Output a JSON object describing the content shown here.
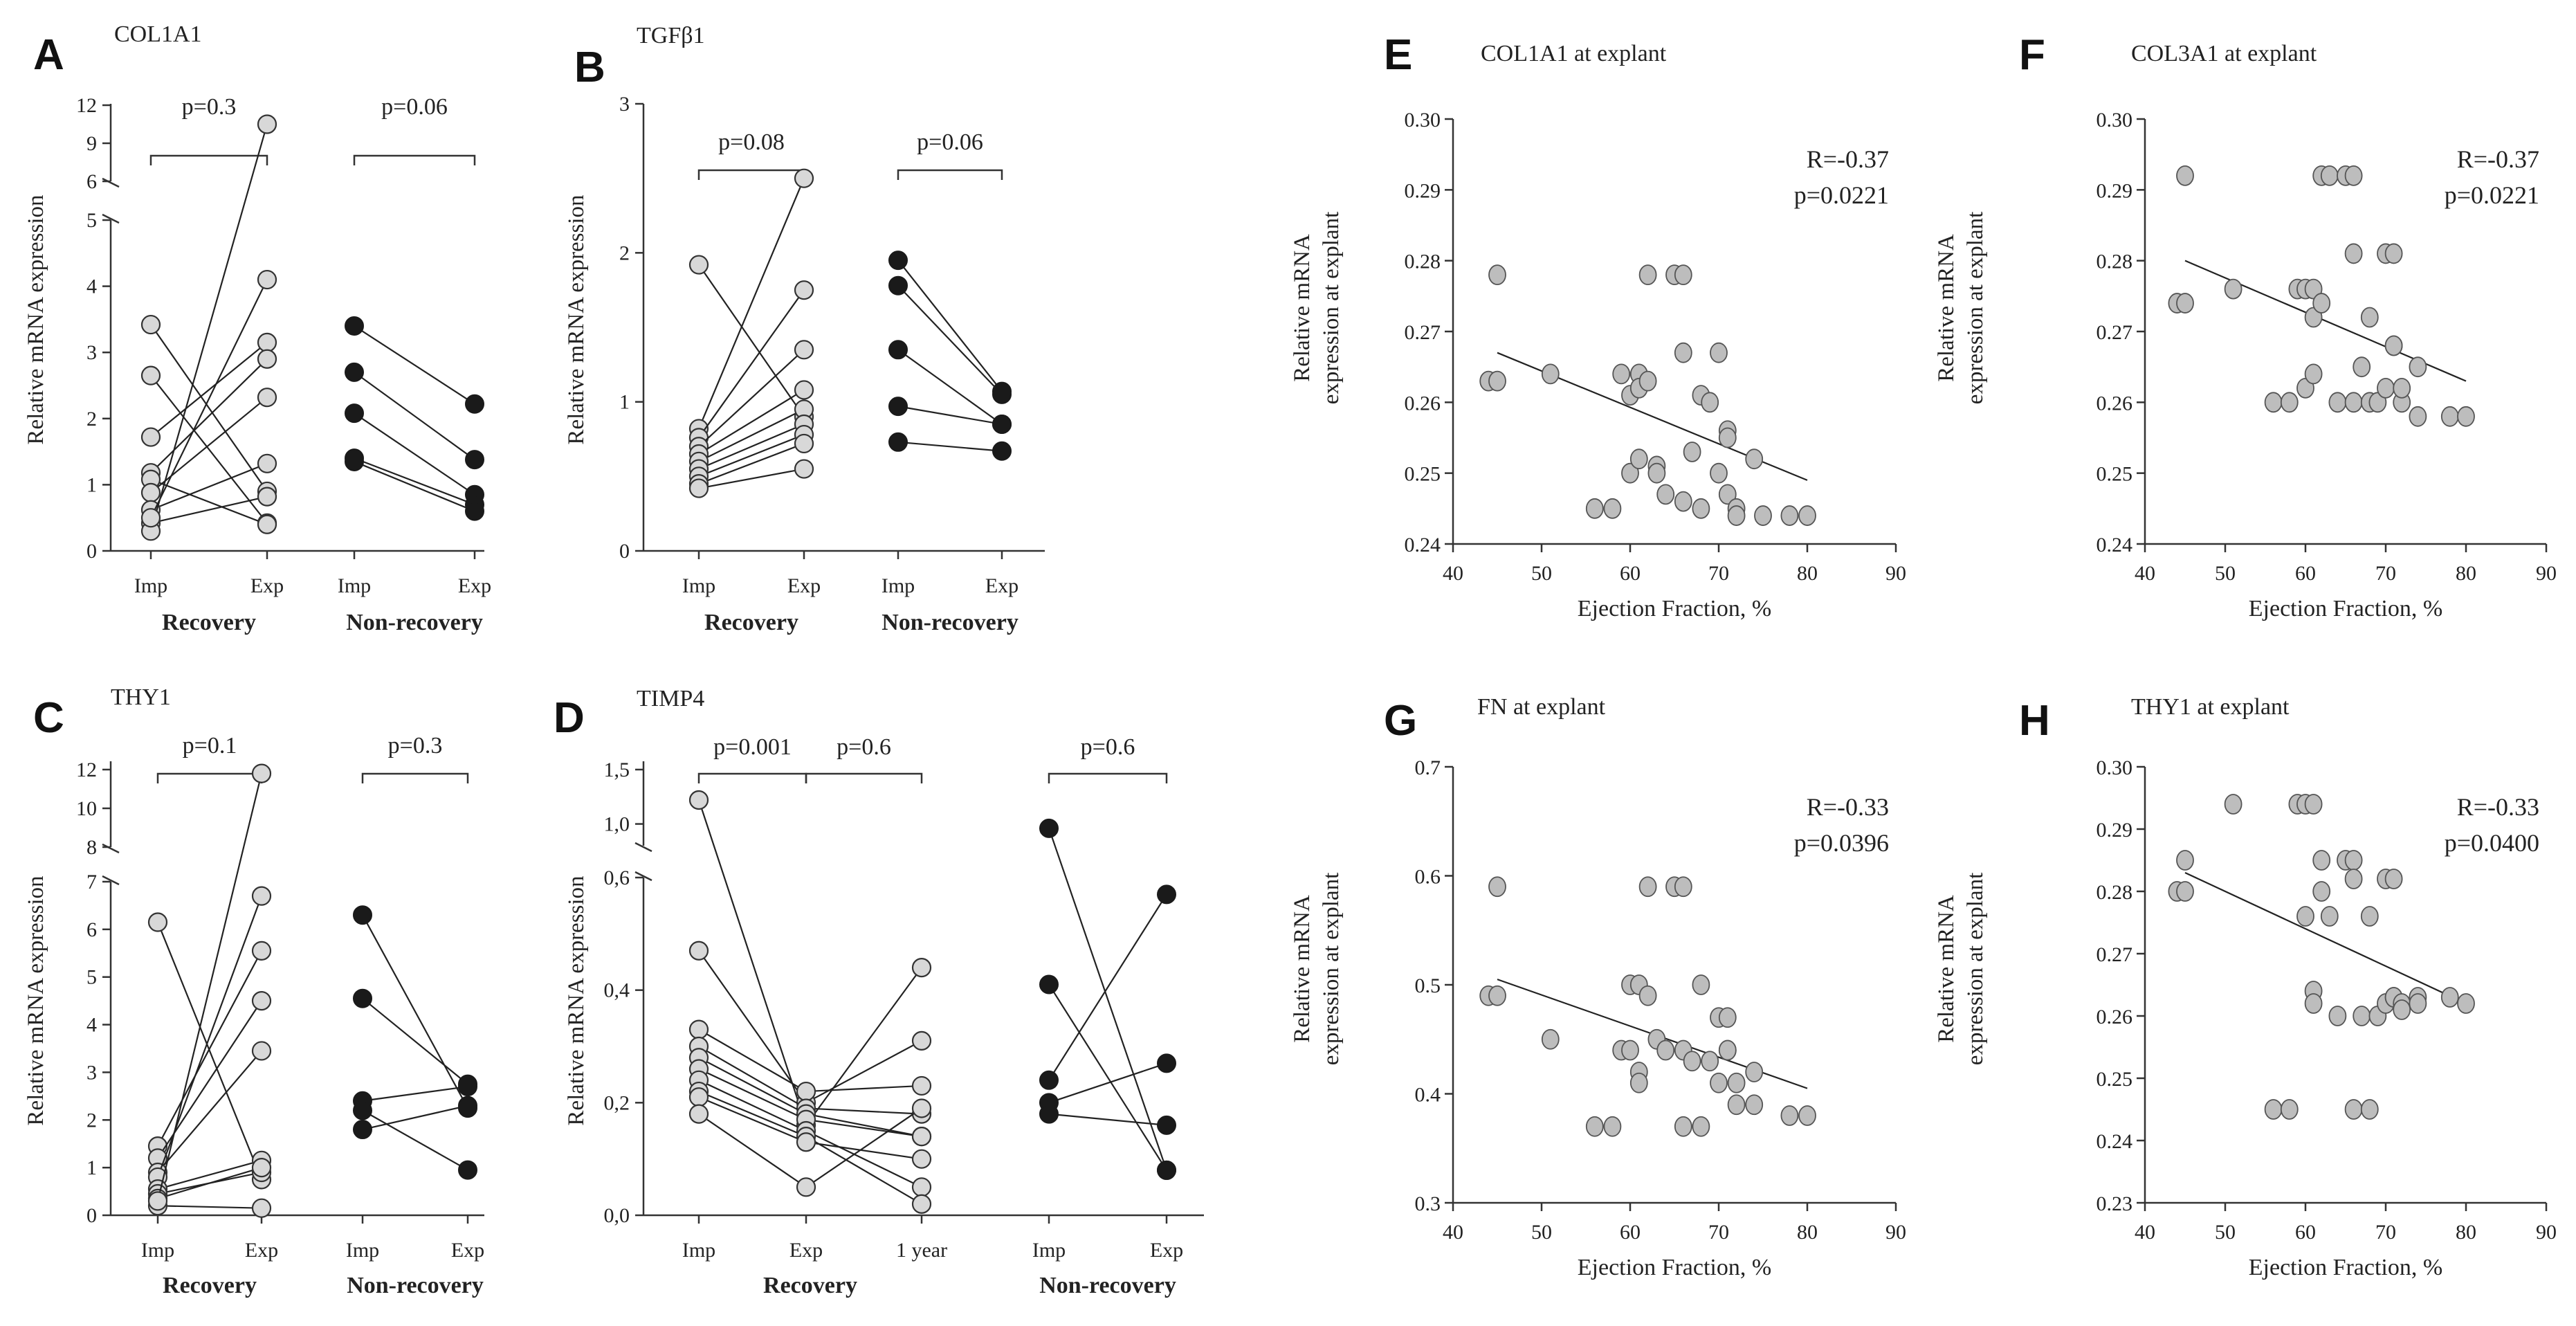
{
  "chart_data": [
    {
      "id": "A",
      "type": "line",
      "subtype": "paired",
      "letter": "A",
      "title": "COL1A1",
      "ylabel": "Relative mRNA expression",
      "yaxis": {
        "ticks": [
          0,
          1,
          2,
          3,
          4,
          5,
          6,
          9,
          12
        ],
        "break": [
          5,
          6
        ]
      },
      "groups": [
        {
          "label": "Recovery",
          "xlabels": [
            "Imp",
            "Exp"
          ],
          "filled": false,
          "p_label": "p=0.3",
          "pairs": [
            [
              3.42,
              0.9
            ],
            [
              2.65,
              0.42
            ],
            [
              1.72,
              3.15
            ],
            [
              1.18,
              2.9
            ],
            [
              1.08,
              0.4
            ],
            [
              0.88,
              2.32
            ],
            [
              0.62,
              1.32
            ],
            [
              0.42,
              0.82
            ],
            [
              0.3,
              10.5
            ],
            [
              0.5,
              4.1
            ]
          ]
        },
        {
          "label": "Non-recovery",
          "xlabels": [
            "Imp",
            "Exp"
          ],
          "filled": true,
          "p_label": "p=0.06",
          "pairs": [
            [
              3.4,
              2.22
            ],
            [
              2.7,
              1.38
            ],
            [
              2.08,
              0.85
            ],
            [
              1.4,
              0.7
            ],
            [
              1.35,
              0.6
            ]
          ]
        }
      ]
    },
    {
      "id": "B",
      "type": "line",
      "subtype": "paired",
      "letter": "B",
      "title": "TGFβ1",
      "ylabel": "Relative mRNA expression",
      "yaxis": {
        "ticks": [
          0,
          1,
          2,
          3
        ],
        "break": null
      },
      "groups": [
        {
          "label": "Recovery",
          "xlabels": [
            "Imp",
            "Exp"
          ],
          "filled": false,
          "p_label": "p=0.08",
          "pairs": [
            [
              1.92,
              0.9
            ],
            [
              0.82,
              2.5
            ],
            [
              0.76,
              1.75
            ],
            [
              0.7,
              1.35
            ],
            [
              0.65,
              1.08
            ],
            [
              0.6,
              0.95
            ],
            [
              0.55,
              0.85
            ],
            [
              0.5,
              0.78
            ],
            [
              0.45,
              0.72
            ],
            [
              0.42,
              0.55
            ]
          ]
        },
        {
          "label": "Non-recovery",
          "xlabels": [
            "Imp",
            "Exp"
          ],
          "filled": true,
          "p_label": "p=0.06",
          "pairs": [
            [
              1.95,
              1.07
            ],
            [
              1.78,
              1.05
            ],
            [
              1.35,
              0.85
            ],
            [
              0.97,
              0.85
            ],
            [
              0.73,
              0.67
            ]
          ]
        }
      ]
    },
    {
      "id": "C",
      "type": "line",
      "subtype": "paired",
      "letter": "C",
      "title": "THY1",
      "ylabel": "Relative mRNA expression",
      "yaxis": {
        "ticks": [
          0,
          1,
          2,
          3,
          4,
          5,
          6,
          7,
          8,
          10,
          12
        ],
        "break": [
          7,
          8
        ]
      },
      "groups": [
        {
          "label": "Recovery",
          "xlabels": [
            "Imp",
            "Exp"
          ],
          "filled": false,
          "p_label": "p=0.1",
          "pairs": [
            [
              6.15,
              0.75
            ],
            [
              1.45,
              5.55
            ],
            [
              1.2,
              4.5
            ],
            [
              0.9,
              3.45
            ],
            [
              0.8,
              6.7
            ],
            [
              0.55,
              1.15
            ],
            [
              0.45,
              0.9
            ],
            [
              0.35,
              1.0
            ],
            [
              0.2,
              0.15
            ],
            [
              0.3,
              11.8
            ]
          ]
        },
        {
          "label": "Non-recovery",
          "xlabels": [
            "Imp",
            "Exp"
          ],
          "filled": true,
          "p_label": "p=0.3",
          "pairs": [
            [
              6.3,
              2.25
            ],
            [
              4.55,
              2.75
            ],
            [
              2.4,
              2.7
            ],
            [
              2.2,
              0.95
            ],
            [
              1.8,
              2.3
            ]
          ]
        }
      ]
    },
    {
      "id": "D",
      "type": "line",
      "subtype": "paired",
      "letter": "D",
      "title": "TIMP4",
      "ylabel": "Relative mRNA expression",
      "yaxis": {
        "ticks": [
          0.0,
          0.2,
          0.4,
          0.6,
          1.0,
          1.5
        ],
        "tick_labels": [
          "0,0",
          "0,2",
          "0,4",
          "0,6",
          "1,0",
          "1,5"
        ],
        "break": [
          0.6,
          0.8
        ]
      },
      "groups": [
        {
          "label": "Recovery",
          "xlabels": [
            "Imp",
            "Exp",
            "1 year"
          ],
          "filled": false,
          "p_labels": [
            "p=0.001",
            "p=0.6"
          ],
          "series": [
            [
              1.22,
              0.16,
              0.44
            ],
            [
              0.47,
              0.2,
              0.31
            ],
            [
              0.33,
              0.22,
              0.23
            ],
            [
              0.3,
              0.19,
              0.18
            ],
            [
              0.28,
              0.18,
              0.14
            ],
            [
              0.26,
              0.17,
              0.14
            ],
            [
              0.24,
              0.15,
              0.05
            ],
            [
              0.22,
              0.14,
              0.02
            ],
            [
              0.21,
              0.13,
              0.1
            ],
            [
              0.18,
              0.05,
              0.19
            ]
          ]
        },
        {
          "label": "Non-recovery",
          "xlabels": [
            "Imp",
            "Exp"
          ],
          "filled": true,
          "p_label": "p=0.6",
          "pairs": [
            [
              0.96,
              0.08
            ],
            [
              0.41,
              0.08
            ],
            [
              0.24,
              0.57
            ],
            [
              0.2,
              0.27
            ],
            [
              0.18,
              0.16
            ]
          ]
        }
      ]
    },
    {
      "id": "E",
      "type": "scatter",
      "letter": "E",
      "title": "COL1A1  at explant",
      "xlabel": "Ejection Fraction, %",
      "ylabel": [
        "Relative mRNA",
        "expression at explant"
      ],
      "xlim": [
        40,
        90
      ],
      "ylim": [
        0.24,
        0.3
      ],
      "xticks": [
        40,
        50,
        60,
        70,
        80,
        90
      ],
      "yticks": [
        0.24,
        0.25,
        0.26,
        0.27,
        0.28,
        0.29,
        0.3
      ],
      "ytick_labels": [
        "0.24",
        "0.25",
        "0.26",
        "0.27",
        "0.28",
        "0.29",
        "0.30"
      ],
      "R": "R=-0.37",
      "p": "p=0.0221",
      "fit": [
        [
          45,
          0.267
        ],
        [
          80,
          0.249
        ]
      ],
      "points": [
        [
          44,
          0.263
        ],
        [
          45,
          0.263
        ],
        [
          45,
          0.278
        ],
        [
          51,
          0.264
        ],
        [
          56,
          0.245
        ],
        [
          58,
          0.245
        ],
        [
          59,
          0.264
        ],
        [
          60,
          0.261
        ],
        [
          60,
          0.25
        ],
        [
          61,
          0.264
        ],
        [
          61,
          0.262
        ],
        [
          61,
          0.252
        ],
        [
          62,
          0.278
        ],
        [
          62,
          0.263
        ],
        [
          63,
          0.251
        ],
        [
          63,
          0.25
        ],
        [
          64,
          0.247
        ],
        [
          65,
          0.278
        ],
        [
          66,
          0.278
        ],
        [
          66,
          0.246
        ],
        [
          66,
          0.267
        ],
        [
          67,
          0.253
        ],
        [
          68,
          0.245
        ],
        [
          68,
          0.261
        ],
        [
          69,
          0.26
        ],
        [
          70,
          0.267
        ],
        [
          70,
          0.25
        ],
        [
          71,
          0.256
        ],
        [
          71,
          0.255
        ],
        [
          71,
          0.247
        ],
        [
          72,
          0.245
        ],
        [
          72,
          0.244
        ],
        [
          74,
          0.252
        ],
        [
          75,
          0.244
        ],
        [
          78,
          0.244
        ],
        [
          80,
          0.244
        ]
      ]
    },
    {
      "id": "F",
      "type": "scatter",
      "letter": "F",
      "title": "COL3A1 at explant",
      "xlabel": "Ejection  Fraction, %",
      "ylabel": [
        "Relative mRNA",
        "expression at explant"
      ],
      "xlim": [
        40,
        90
      ],
      "ylim": [
        0.24,
        0.3
      ],
      "xticks": [
        40,
        50,
        60,
        70,
        80,
        90
      ],
      "yticks": [
        0.24,
        0.25,
        0.26,
        0.27,
        0.28,
        0.29,
        0.3
      ],
      "ytick_labels": [
        "0.24",
        "0.25",
        "0.26",
        "0.27",
        "0.28",
        "0.29",
        "0.30"
      ],
      "R": "R=-0.37",
      "p": "p=0.0221",
      "fit": [
        [
          45,
          0.28
        ],
        [
          80,
          0.263
        ]
      ],
      "points": [
        [
          44,
          0.274
        ],
        [
          45,
          0.274
        ],
        [
          45,
          0.292
        ],
        [
          51,
          0.276
        ],
        [
          56,
          0.26
        ],
        [
          58,
          0.26
        ],
        [
          59,
          0.276
        ],
        [
          60,
          0.276
        ],
        [
          60,
          0.262
        ],
        [
          61,
          0.276
        ],
        [
          61,
          0.272
        ],
        [
          61,
          0.264
        ],
        [
          62,
          0.292
        ],
        [
          62,
          0.274
        ],
        [
          63,
          0.292
        ],
        [
          64,
          0.26
        ],
        [
          65,
          0.292
        ],
        [
          66,
          0.292
        ],
        [
          66,
          0.26
        ],
        [
          66,
          0.281
        ],
        [
          67,
          0.265
        ],
        [
          68,
          0.26
        ],
        [
          68,
          0.272
        ],
        [
          69,
          0.26
        ],
        [
          70,
          0.281
        ],
        [
          70,
          0.262
        ],
        [
          71,
          0.281
        ],
        [
          71,
          0.268
        ],
        [
          71,
          0.268
        ],
        [
          72,
          0.26
        ],
        [
          72,
          0.262
        ],
        [
          74,
          0.265
        ],
        [
          74,
          0.258
        ],
        [
          78,
          0.258
        ],
        [
          80,
          0.258
        ]
      ]
    },
    {
      "id": "G",
      "type": "scatter",
      "letter": "G",
      "title": "FN at explant",
      "xlabel": "Ejection Fraction, %",
      "ylabel": [
        "Relative mRNA",
        "expression at explant"
      ],
      "xlim": [
        40,
        90
      ],
      "ylim": [
        0.3,
        0.7
      ],
      "xticks": [
        40,
        50,
        60,
        70,
        80,
        90
      ],
      "yticks": [
        0.3,
        0.4,
        0.5,
        0.6,
        0.7
      ],
      "ytick_labels": [
        "0.3",
        "0.4",
        "0.5",
        "0.6",
        "0.7"
      ],
      "R": "R=-0.33",
      "p": "p=0.0396",
      "fit": [
        [
          45,
          0.505
        ],
        [
          80,
          0.405
        ]
      ],
      "points": [
        [
          44,
          0.49
        ],
        [
          45,
          0.49
        ],
        [
          45,
          0.59
        ],
        [
          51,
          0.45
        ],
        [
          56,
          0.37
        ],
        [
          58,
          0.37
        ],
        [
          59,
          0.44
        ],
        [
          60,
          0.5
        ],
        [
          60,
          0.44
        ],
        [
          61,
          0.5
        ],
        [
          61,
          0.42
        ],
        [
          61,
          0.41
        ],
        [
          62,
          0.59
        ],
        [
          62,
          0.49
        ],
        [
          63,
          0.45
        ],
        [
          64,
          0.44
        ],
        [
          65,
          0.59
        ],
        [
          66,
          0.59
        ],
        [
          66,
          0.37
        ],
        [
          66,
          0.44
        ],
        [
          67,
          0.43
        ],
        [
          68,
          0.37
        ],
        [
          68,
          0.5
        ],
        [
          69,
          0.43
        ],
        [
          70,
          0.47
        ],
        [
          70,
          0.41
        ],
        [
          71,
          0.47
        ],
        [
          71,
          0.44
        ],
        [
          71,
          0.44
        ],
        [
          72,
          0.41
        ],
        [
          72,
          0.39
        ],
        [
          74,
          0.42
        ],
        [
          74,
          0.39
        ],
        [
          78,
          0.38
        ],
        [
          80,
          0.38
        ]
      ]
    },
    {
      "id": "H",
      "type": "scatter",
      "letter": "H",
      "title": "THY1 at explant",
      "xlabel": "Ejection Fraction, %",
      "ylabel": [
        "Relative mRNA",
        "expression at explant"
      ],
      "xlim": [
        40,
        90
      ],
      "ylim": [
        0.23,
        0.3
      ],
      "xticks": [
        40,
        50,
        60,
        70,
        80,
        90
      ],
      "yticks": [
        0.23,
        0.24,
        0.25,
        0.26,
        0.27,
        0.28,
        0.29,
        0.3
      ],
      "ytick_labels": [
        "0.23",
        "0.24",
        "0.25",
        "0.26",
        "0.27",
        "0.28",
        "0.29",
        "0.30"
      ],
      "R": "R=-0.33",
      "p": "p=0.0400",
      "fit": [
        [
          45,
          0.283
        ],
        [
          80,
          0.262
        ]
      ],
      "points": [
        [
          44,
          0.28
        ],
        [
          45,
          0.28
        ],
        [
          45,
          0.285
        ],
        [
          51,
          0.294
        ],
        [
          56,
          0.245
        ],
        [
          58,
          0.245
        ],
        [
          59,
          0.294
        ],
        [
          60,
          0.294
        ],
        [
          60,
          0.276
        ],
        [
          61,
          0.294
        ],
        [
          61,
          0.264
        ],
        [
          61,
          0.262
        ],
        [
          62,
          0.285
        ],
        [
          62,
          0.28
        ],
        [
          63,
          0.276
        ],
        [
          64,
          0.26
        ],
        [
          65,
          0.285
        ],
        [
          66,
          0.285
        ],
        [
          66,
          0.245
        ],
        [
          66,
          0.282
        ],
        [
          67,
          0.26
        ],
        [
          68,
          0.245
        ],
        [
          68,
          0.276
        ],
        [
          69,
          0.26
        ],
        [
          70,
          0.282
        ],
        [
          70,
          0.262
        ],
        [
          71,
          0.282
        ],
        [
          71,
          0.263
        ],
        [
          71,
          0.263
        ],
        [
          72,
          0.262
        ],
        [
          72,
          0.261
        ],
        [
          74,
          0.263
        ],
        [
          74,
          0.262
        ],
        [
          78,
          0.263
        ],
        [
          80,
          0.262
        ]
      ]
    }
  ]
}
